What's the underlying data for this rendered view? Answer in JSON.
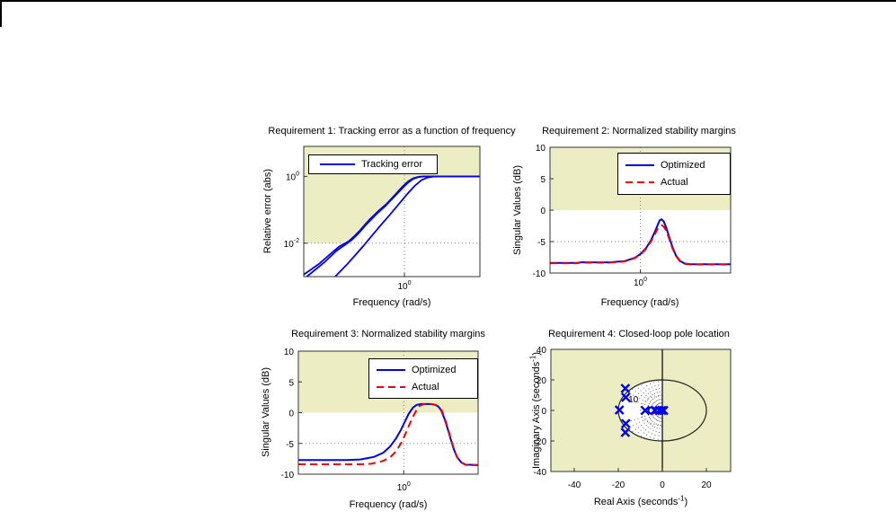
{
  "window": {
    "background": "#FFFFFF",
    "top_border_color": "#000000",
    "left_border_color": "#000000"
  },
  "colors": {
    "constraint_band": "#EDEDC4",
    "optimized_line": "#0000EE",
    "actual_line": "#EE0000",
    "gridline": "#848484",
    "axis_box": "#333333",
    "pole_marker": "#0000EE"
  },
  "chart_data": [
    {
      "id": "requirement-1",
      "type": "line",
      "title": "Requirement 1: Tracking error as a function of frequency",
      "xlabel": "Frequency (rad/s)",
      "ylabel": "Relative error (abs)",
      "xscale": "log",
      "yscale": "log",
      "xlim": [
        0.01,
        31.6
      ],
      "ylim": [
        0.001,
        7.9
      ],
      "xticks": [
        {
          "value": 1,
          "base": "10",
          "exp": "0"
        }
      ],
      "yticks": [
        {
          "value": 1,
          "base": "10",
          "exp": "0"
        },
        {
          "value": 0.01,
          "base": "10",
          "exp": "-2"
        }
      ],
      "gridlines": {
        "x": [
          1
        ],
        "y": [
          0.01
        ]
      },
      "bound_shading": {
        "side": "above",
        "edge": [
          [
            0.01,
            0.01
          ],
          [
            0.055,
            0.01
          ],
          [
            0.08,
            0.013
          ],
          [
            0.13,
            0.025
          ],
          [
            0.25,
            0.07
          ],
          [
            0.45,
            0.17
          ],
          [
            0.7,
            0.33
          ],
          [
            1.0,
            0.58
          ],
          [
            1.4,
            0.86
          ],
          [
            1.9,
            1.0
          ],
          [
            31.6,
            1.0
          ]
        ]
      },
      "series": [
        {
          "name": "Tracking error",
          "color": "#0000EE",
          "style": "solid",
          "points": [
            [
              0.01,
              0.00115
            ],
            [
              0.02,
              0.0024
            ],
            [
              0.035,
              0.005
            ],
            [
              0.05,
              0.0078
            ],
            [
              0.065,
              0.0098
            ],
            [
              0.08,
              0.0118
            ],
            [
              0.1,
              0.016
            ],
            [
              0.13,
              0.024
            ],
            [
              0.2,
              0.05
            ],
            [
              0.3,
              0.09
            ],
            [
              0.45,
              0.155
            ],
            [
              0.65,
              0.28
            ],
            [
              0.9,
              0.48
            ],
            [
              1.2,
              0.72
            ],
            [
              1.5,
              0.88
            ],
            [
              1.9,
              0.97
            ],
            [
              2.4,
              1.0
            ],
            [
              31.6,
              1.0
            ]
          ]
        },
        {
          "name": "",
          "color": "#0000EE",
          "style": "solid",
          "points": [
            [
              0.0115,
              0.001
            ],
            [
              0.025,
              0.0026
            ],
            [
              0.045,
              0.006
            ],
            [
              0.07,
              0.0095
            ],
            [
              0.09,
              0.0125
            ],
            [
              0.12,
              0.019
            ],
            [
              0.18,
              0.038
            ],
            [
              0.28,
              0.075
            ],
            [
              0.42,
              0.13
            ],
            [
              0.6,
              0.23
            ],
            [
              0.85,
              0.4
            ],
            [
              1.15,
              0.63
            ],
            [
              1.5,
              0.84
            ],
            [
              1.9,
              0.95
            ],
            [
              2.5,
              1.0
            ],
            [
              31.6,
              1.0
            ]
          ]
        },
        {
          "name": "",
          "color": "#0000EE",
          "style": "solid",
          "points": [
            [
              0.042,
              0.001
            ],
            [
              0.07,
              0.0022
            ],
            [
              0.1,
              0.004
            ],
            [
              0.15,
              0.008
            ],
            [
              0.22,
              0.016
            ],
            [
              0.33,
              0.033
            ],
            [
              0.5,
              0.068
            ],
            [
              0.75,
              0.14
            ],
            [
              1.1,
              0.28
            ],
            [
              1.6,
              0.52
            ],
            [
              2.2,
              0.78
            ],
            [
              2.9,
              0.93
            ],
            [
              3.8,
              0.99
            ],
            [
              5.0,
              1.0
            ],
            [
              31.6,
              1.0
            ]
          ]
        }
      ]
    },
    {
      "id": "requirement-2",
      "type": "line",
      "title": "Requirement 2: Normalized stability margins",
      "xlabel": "Frequency (rad/s)",
      "ylabel": "Singular Values (dB)",
      "xscale": "log",
      "yscale": "linear",
      "xlim": [
        0.0316,
        31.6
      ],
      "ylim": [
        -10,
        10
      ],
      "xticks": [
        {
          "value": 1,
          "base": "10",
          "exp": "0"
        }
      ],
      "yticks": [
        10,
        5,
        0,
        -5,
        -10
      ],
      "gridlines": {
        "x": [
          1
        ],
        "y": [
          -5
        ]
      },
      "band": {
        "from": 0,
        "to": 10
      },
      "series": [
        {
          "name": "Optimized",
          "color": "#0000EE",
          "style": "solid",
          "points": [
            [
              0.0316,
              -8.4
            ],
            [
              0.09,
              -8.4
            ],
            [
              0.1,
              -8.3
            ],
            [
              0.3,
              -8.3
            ],
            [
              0.55,
              -8.1
            ],
            [
              0.8,
              -7.6
            ],
            [
              1.0,
              -7.0
            ],
            [
              1.25,
              -6.0
            ],
            [
              1.5,
              -4.8
            ],
            [
              1.75,
              -3.4
            ],
            [
              1.95,
              -2.3
            ],
            [
              2.1,
              -1.6
            ],
            [
              2.25,
              -1.45
            ],
            [
              2.45,
              -1.8
            ],
            [
              2.7,
              -2.8
            ],
            [
              3.0,
              -4.2
            ],
            [
              3.4,
              -5.8
            ],
            [
              3.9,
              -7.2
            ],
            [
              4.6,
              -8.1
            ],
            [
              5.5,
              -8.5
            ],
            [
              7.0,
              -8.6
            ],
            [
              31.6,
              -8.6
            ]
          ]
        },
        {
          "name": "Actual",
          "color": "#EE0000",
          "style": "dashed",
          "points": [
            [
              0.0316,
              -8.45
            ],
            [
              0.09,
              -8.45
            ],
            [
              0.1,
              -8.35
            ],
            [
              0.3,
              -8.35
            ],
            [
              0.55,
              -8.15
            ],
            [
              0.8,
              -7.65
            ],
            [
              1.0,
              -7.1
            ],
            [
              1.25,
              -6.15
            ],
            [
              1.5,
              -5.0
            ],
            [
              1.75,
              -3.8
            ],
            [
              1.95,
              -2.9
            ],
            [
              2.1,
              -2.5
            ],
            [
              2.25,
              -2.4
            ],
            [
              2.45,
              -2.6
            ],
            [
              2.7,
              -3.3
            ],
            [
              3.0,
              -4.5
            ],
            [
              3.4,
              -6.0
            ],
            [
              3.9,
              -7.3
            ],
            [
              4.6,
              -8.2
            ],
            [
              5.5,
              -8.55
            ],
            [
              7.0,
              -8.65
            ],
            [
              31.6,
              -8.65
            ]
          ]
        }
      ]
    },
    {
      "id": "requirement-3",
      "type": "line",
      "title": "Requirement 3: Normalized stability margins",
      "xlabel": "Frequency (rad/s)",
      "ylabel": "Singular Values (dB)",
      "xscale": "log",
      "yscale": "linear",
      "xlim": [
        0.02,
        15.8
      ],
      "ylim": [
        -10,
        10
      ],
      "xticks": [
        {
          "value": 1,
          "base": "10",
          "exp": "0"
        }
      ],
      "yticks": [
        10,
        5,
        0,
        -5,
        -10
      ],
      "gridlines": {
        "x": [
          1
        ],
        "y": [
          -5
        ]
      },
      "band": {
        "from": 0,
        "to": 10
      },
      "series": [
        {
          "name": "Optimized",
          "color": "#0000EE",
          "style": "solid",
          "points": [
            [
              0.02,
              -7.7
            ],
            [
              0.12,
              -7.7
            ],
            [
              0.2,
              -7.6
            ],
            [
              0.33,
              -7.2
            ],
            [
              0.47,
              -6.5
            ],
            [
              0.6,
              -5.5
            ],
            [
              0.75,
              -4.2
            ],
            [
              0.9,
              -2.8
            ],
            [
              1.05,
              -1.4
            ],
            [
              1.2,
              -0.2
            ],
            [
              1.4,
              0.8
            ],
            [
              1.6,
              1.25
            ],
            [
              1.9,
              1.4
            ],
            [
              2.6,
              1.4
            ],
            [
              3.2,
              1.3
            ],
            [
              3.6,
              1.0
            ],
            [
              4.0,
              0.4
            ],
            [
              4.5,
              -0.9
            ],
            [
              5.0,
              -2.3
            ],
            [
              5.6,
              -4.0
            ],
            [
              6.3,
              -5.7
            ],
            [
              7.2,
              -7.2
            ],
            [
              8.5,
              -8.1
            ],
            [
              10,
              -8.45
            ],
            [
              15.8,
              -8.5
            ]
          ]
        },
        {
          "name": "Actual",
          "color": "#EE0000",
          "style": "dashed",
          "points": [
            [
              0.02,
              -8.4
            ],
            [
              0.18,
              -8.4
            ],
            [
              0.3,
              -8.3
            ],
            [
              0.45,
              -7.9
            ],
            [
              0.6,
              -7.3
            ],
            [
              0.75,
              -6.3
            ],
            [
              0.9,
              -5.0
            ],
            [
              1.05,
              -3.6
            ],
            [
              1.2,
              -2.2
            ],
            [
              1.4,
              -0.7
            ],
            [
              1.6,
              0.4
            ],
            [
              1.8,
              1.1
            ],
            [
              2.1,
              1.4
            ],
            [
              2.8,
              1.4
            ],
            [
              3.3,
              1.25
            ],
            [
              3.7,
              0.95
            ],
            [
              4.1,
              0.35
            ],
            [
              4.6,
              -0.95
            ],
            [
              5.1,
              -2.4
            ],
            [
              5.7,
              -4.1
            ],
            [
              6.4,
              -5.8
            ],
            [
              7.3,
              -7.3
            ],
            [
              8.6,
              -8.15
            ],
            [
              10,
              -8.5
            ],
            [
              15.8,
              -8.55
            ]
          ]
        }
      ]
    },
    {
      "id": "requirement-4",
      "type": "scatter",
      "title": "Requirement 4: Closed-loop pole location",
      "xlabel_parts": {
        "pre": "Real Axis (seconds",
        "sup": "-1",
        "post": ")"
      },
      "ylabel_parts": {
        "pre": "Imaginary Axis (seconds",
        "sup": "-1",
        "post": ")"
      },
      "xlim": [
        -50.6,
        31
      ],
      "ylim": [
        -40,
        40
      ],
      "xticks": [
        -40,
        -20,
        0,
        20
      ],
      "yticks": [
        40,
        20,
        0,
        -20,
        -40
      ],
      "constraint": {
        "max_frequency_circle_radius": 20,
        "allowed_region": "left half-disk",
        "grid_arc_radius": 10,
        "arc_label": "10",
        "arc_label_pos": [
          -13.2,
          5.3
        ],
        "zeta_lines": [
          0.1,
          0.2,
          0.3,
          0.4,
          0.5,
          0.6,
          0.7,
          0.8,
          0.9
        ]
      },
      "poles": [
        [
          -16.8,
          14.4
        ],
        [
          -16.6,
          8.6
        ],
        [
          -19.5,
          0.3
        ],
        [
          -7.8,
          0
        ],
        [
          -3.4,
          0
        ],
        [
          -1.4,
          0
        ],
        [
          -0.3,
          0
        ],
        [
          0.6,
          0
        ],
        [
          -16.6,
          -8.6
        ],
        [
          -16.8,
          -14.4
        ]
      ],
      "o_markers": [
        [
          -4.9,
          0
        ]
      ]
    }
  ]
}
